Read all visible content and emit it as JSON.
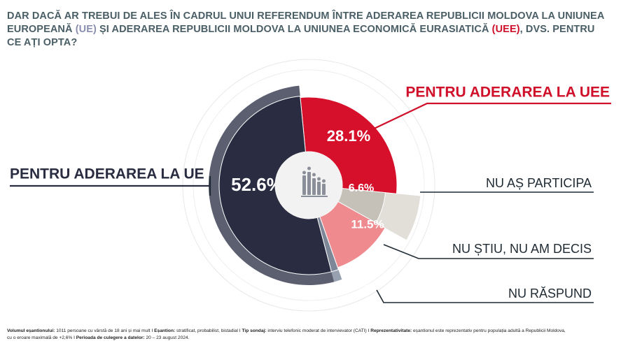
{
  "title": {
    "part1": "DAR DACĂ AR TREBUI DE ALES ÎN CADRUL UNUI REFERENDUM ÎNTRE ADERAREA REPUBLICII MOLDOVA LA UNIUNEA EUROPEANĂ",
    "ue_abbr": "(UE)",
    "part2": " ȘI ADERAREA REPUBLICII MOLDOVA LA UNIUNEA ECONOMICĂ EURASIATICĂ ",
    "uee_abbr": "(UEE)",
    "part3": ", DVS. PENTRU CE AȚI OPTA?"
  },
  "chart_data": {
    "type": "pie",
    "variant": "donut",
    "title": "DAR DACĂ AR TREBUI DE ALES ÎN CADRUL UNUI REFERENDUM ÎNTRE ADERAREA REPUBLICII MOLDOVA LA UNIUNEA EUROPEANĂ (UE) ȘI ADERAREA REPUBLICII MOLDOVA LA UNIUNEA ECONOMICĂ EURASIATICĂ (UEE), DVS. PENTRU CE AȚI OPTA?",
    "slices": [
      {
        "key": "uee",
        "label": "PENTRU ADERAREA LA UEE",
        "value": 28.1,
        "value_label": "28.1%",
        "color": "#d6102b",
        "outer_color": "#ffffff",
        "label_color": "#d0102a"
      },
      {
        "key": "nu_particip",
        "label": "NU AȘ PARTICIPA",
        "value": 6.6,
        "value_label": "6.6%",
        "color": "#c5c1b8",
        "outer_color": "#e2dfd9",
        "label_color": "#1f2a33"
      },
      {
        "key": "nu_stiu",
        "label": "NU ȘTIU, NU AM DECIS",
        "value": 11.5,
        "value_label": "11.5%",
        "color": "#ef8a8e",
        "outer_color": "#ffffff",
        "label_color": "#1f2a33"
      },
      {
        "key": "nu_raspund",
        "label": "NU RĂSPUND",
        "value": 1.3,
        "value_label": "1.3%",
        "color": "#7d8798",
        "outer_color": "#98a1b0",
        "label_color": "#1f2a33"
      },
      {
        "key": "ue",
        "label": "PENTRU ADERAREA LA UE",
        "value": 52.6,
        "value_label": "52.6%",
        "color": "#2a2d42",
        "outer_color": "#5b5f70",
        "label_color": "#2a2d42"
      }
    ]
  },
  "center_icon": "people-chart-icon",
  "footer": {
    "vol_label": "Volumul eșantionului:",
    "vol_value": " 1011 persoane cu vârstă de 18 ani și mai mult",
    "sep": "  I  ",
    "esantion_label": "Eșantion:",
    "esantion_value": " stratificat, probabilist, bistadial",
    "tip_label": "Tip sondaj:",
    "tip_value": " interviu telefonic moderat de intervievator (CATI)",
    "repr_label": "Reprezentativitate:",
    "repr_value": " eșantionul este reprezentativ pentru populația adultă a Republicii Moldova,",
    "line2_value": "cu o eroare maximală de +2,6%",
    "perioada_label": "Perioada de culegere a datelor:",
    "perioada_value": " 20 – 23 august 2024."
  }
}
